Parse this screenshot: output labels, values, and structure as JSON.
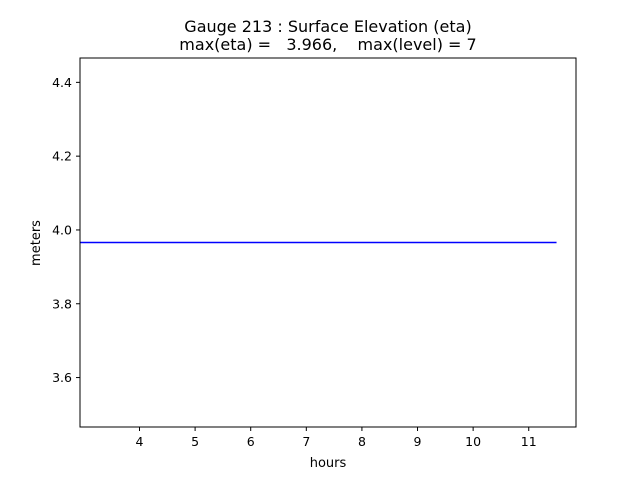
{
  "chart_data": {
    "type": "line",
    "title": "Gauge 213 : Surface Elevation (eta)",
    "subtitle": "max(eta) =   3.966,    max(level) = 7",
    "xlabel": "hours",
    "ylabel": "meters",
    "xlim": [
      2.93,
      11.85
    ],
    "ylim": [
      3.466,
      4.466
    ],
    "xticks": [
      4,
      5,
      6,
      7,
      8,
      9,
      10,
      11
    ],
    "yticks": [
      3.6,
      3.8,
      4.0,
      4.2,
      4.4
    ],
    "ytick_labels": [
      "3.6",
      "3.8",
      "4.0",
      "4.2",
      "4.4"
    ],
    "grid": false,
    "series": [
      {
        "color": "#0000ff",
        "x": [
          2.93,
          11.5
        ],
        "y": [
          3.966,
          3.966
        ]
      }
    ]
  }
}
